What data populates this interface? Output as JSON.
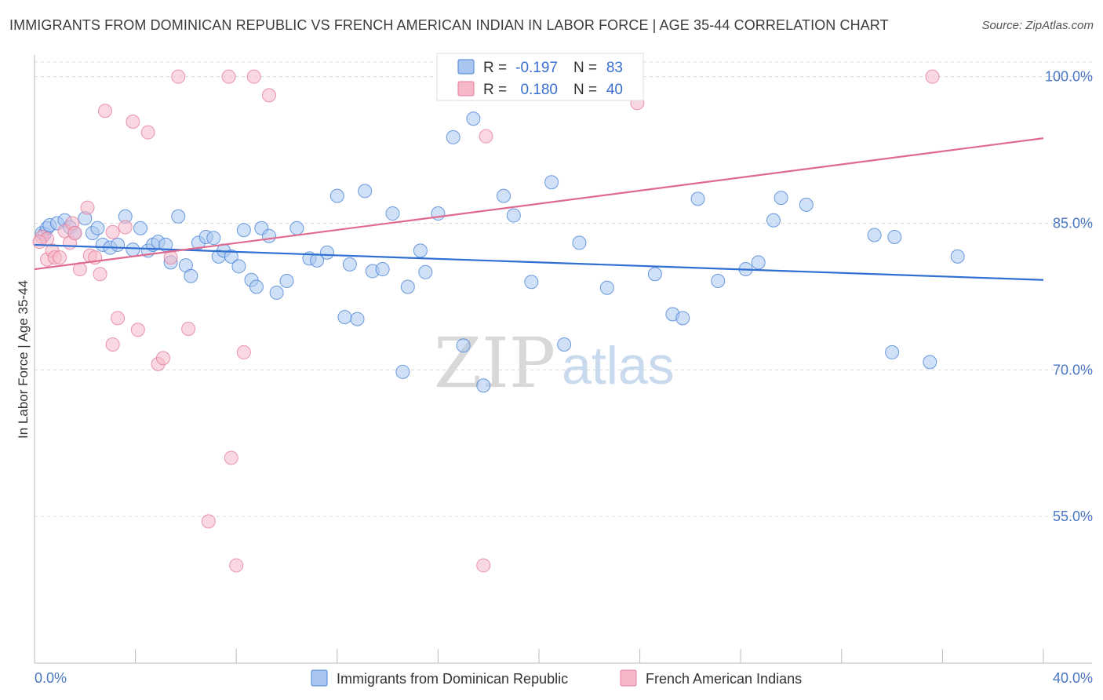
{
  "title": "IMMIGRANTS FROM DOMINICAN REPUBLIC VS FRENCH AMERICAN INDIAN IN LABOR FORCE | AGE 35-44 CORRELATION CHART",
  "source": "Source: ZipAtlas.com",
  "watermark": {
    "part1": "ZIP",
    "part2": "atlas"
  },
  "legend": {
    "r_label": "R =",
    "n_label": "N =",
    "rows": [
      {
        "r": "-0.197",
        "n": "83",
        "color": "#a9c6f0"
      },
      {
        "r": "0.180",
        "n": "40",
        "color": "#f6b8c9"
      }
    ]
  },
  "chart_data": {
    "type": "scatter",
    "title": "IMMIGRANTS FROM DOMINICAN REPUBLIC VS FRENCH AMERICAN INDIAN IN LABOR FORCE | AGE 35-44 CORRELATION CHART",
    "xlabel": "",
    "ylabel": "In Labor Force | Age 35-44",
    "xlim": [
      0,
      40
    ],
    "ylim": [
      40,
      101.5
    ],
    "x_tick_labels": [
      "0.0%",
      "40.0%"
    ],
    "y_ticks": [
      55,
      70,
      85,
      100
    ],
    "y_tick_labels": [
      "55.0%",
      "70.0%",
      "85.0%",
      "100.0%"
    ],
    "grid": "horizontal dashed",
    "legend_position": "top-center",
    "series": [
      {
        "name": "Immigrants from Dominican Republic",
        "color": "#4a83d6",
        "fill": "#a9c6f0",
        "trend": {
          "x": [
            0,
            40
          ],
          "y": [
            82.8,
            79.2
          ],
          "color": "#2f6fd1"
        },
        "points": [
          [
            0.3,
            84.0
          ],
          [
            0.4,
            83.9
          ],
          [
            0.5,
            84.5
          ],
          [
            0.6,
            84.8
          ],
          [
            0.9,
            85.0
          ],
          [
            1.2,
            85.3
          ],
          [
            1.4,
            84.6
          ],
          [
            1.6,
            84.0
          ],
          [
            2.0,
            85.5
          ],
          [
            2.3,
            84.0
          ],
          [
            2.5,
            84.5
          ],
          [
            2.7,
            82.8
          ],
          [
            3.0,
            82.5
          ],
          [
            3.3,
            82.8
          ],
          [
            3.6,
            85.7
          ],
          [
            3.9,
            82.3
          ],
          [
            4.2,
            84.5
          ],
          [
            4.5,
            82.2
          ],
          [
            4.7,
            82.8
          ],
          [
            4.9,
            83.1
          ],
          [
            5.2,
            82.8
          ],
          [
            5.4,
            81.0
          ],
          [
            5.7,
            85.7
          ],
          [
            6.0,
            80.7
          ],
          [
            6.2,
            79.6
          ],
          [
            6.5,
            83.0
          ],
          [
            6.8,
            83.6
          ],
          [
            7.1,
            83.5
          ],
          [
            7.3,
            81.6
          ],
          [
            7.5,
            82.2
          ],
          [
            7.8,
            81.6
          ],
          [
            8.1,
            80.6
          ],
          [
            8.3,
            84.3
          ],
          [
            8.6,
            79.2
          ],
          [
            8.8,
            78.5
          ],
          [
            9.0,
            84.5
          ],
          [
            9.3,
            83.7
          ],
          [
            9.6,
            77.9
          ],
          [
            10.0,
            79.1
          ],
          [
            10.4,
            84.5
          ],
          [
            10.9,
            81.4
          ],
          [
            11.2,
            81.2
          ],
          [
            11.6,
            82.0
          ],
          [
            12.0,
            87.8
          ],
          [
            12.3,
            75.4
          ],
          [
            12.5,
            80.8
          ],
          [
            12.8,
            75.2
          ],
          [
            13.1,
            88.3
          ],
          [
            13.4,
            80.1
          ],
          [
            13.8,
            80.3
          ],
          [
            14.2,
            86.0
          ],
          [
            14.6,
            69.8
          ],
          [
            14.8,
            78.5
          ],
          [
            15.3,
            82.2
          ],
          [
            15.5,
            80.0
          ],
          [
            16.0,
            86.0
          ],
          [
            16.6,
            93.8
          ],
          [
            17.0,
            72.5
          ],
          [
            17.4,
            95.7
          ],
          [
            17.8,
            68.4
          ],
          [
            18.6,
            87.8
          ],
          [
            19.0,
            85.8
          ],
          [
            19.7,
            79.0
          ],
          [
            20.5,
            89.2
          ],
          [
            21.0,
            72.6
          ],
          [
            21.6,
            83.0
          ],
          [
            22.7,
            78.4
          ],
          [
            24.6,
            79.8
          ],
          [
            25.3,
            75.7
          ],
          [
            25.7,
            75.3
          ],
          [
            26.3,
            87.5
          ],
          [
            27.1,
            79.1
          ],
          [
            28.2,
            80.3
          ],
          [
            28.7,
            81.0
          ],
          [
            29.3,
            85.3
          ],
          [
            29.6,
            87.6
          ],
          [
            30.6,
            86.9
          ],
          [
            33.3,
            83.8
          ],
          [
            34.0,
            71.8
          ],
          [
            34.1,
            83.6
          ],
          [
            35.5,
            70.8
          ],
          [
            36.6,
            81.6
          ],
          [
            18.0,
            100.0
          ]
        ]
      },
      {
        "name": "French American Indians",
        "color": "#e57c9d",
        "fill": "#f6b8c9",
        "trend": {
          "x": [
            0,
            40
          ],
          "y": [
            80.3,
            93.7
          ],
          "color": "#e0698f"
        },
        "points": [
          [
            0.3,
            83.6
          ],
          [
            0.5,
            81.3
          ],
          [
            0.7,
            82.2
          ],
          [
            0.8,
            81.5
          ],
          [
            1.0,
            81.5
          ],
          [
            1.2,
            84.2
          ],
          [
            1.4,
            83.0
          ],
          [
            1.5,
            85.0
          ],
          [
            1.6,
            84.0
          ],
          [
            1.8,
            80.3
          ],
          [
            2.1,
            86.6
          ],
          [
            2.2,
            81.7
          ],
          [
            2.4,
            81.5
          ],
          [
            2.6,
            79.8
          ],
          [
            2.8,
            96.5
          ],
          [
            3.1,
            84.1
          ],
          [
            3.1,
            72.6
          ],
          [
            3.3,
            75.3
          ],
          [
            3.6,
            84.6
          ],
          [
            3.9,
            95.4
          ],
          [
            4.1,
            74.1
          ],
          [
            4.5,
            94.3
          ],
          [
            4.9,
            70.6
          ],
          [
            5.1,
            71.2
          ],
          [
            5.4,
            81.5
          ],
          [
            5.7,
            100.0
          ],
          [
            6.1,
            74.2
          ],
          [
            6.9,
            54.5
          ],
          [
            7.7,
            100.0
          ],
          [
            7.8,
            61.0
          ],
          [
            8.0,
            50.0
          ],
          [
            8.3,
            71.8
          ],
          [
            8.7,
            100.0
          ],
          [
            9.3,
            98.1
          ],
          [
            17.8,
            50.0
          ],
          [
            17.9,
            93.9
          ],
          [
            23.9,
            97.3
          ],
          [
            35.6,
            100.0
          ],
          [
            0.5,
            83.4
          ],
          [
            0.2,
            83.1
          ]
        ]
      }
    ]
  },
  "bottom_legend": [
    {
      "label": "Immigrants from Dominican Republic",
      "color": "#a9c6f0",
      "stroke": "#4a83d6"
    },
    {
      "label": "French American Indians",
      "color": "#f6b8c9",
      "stroke": "#e57c9d"
    }
  ]
}
